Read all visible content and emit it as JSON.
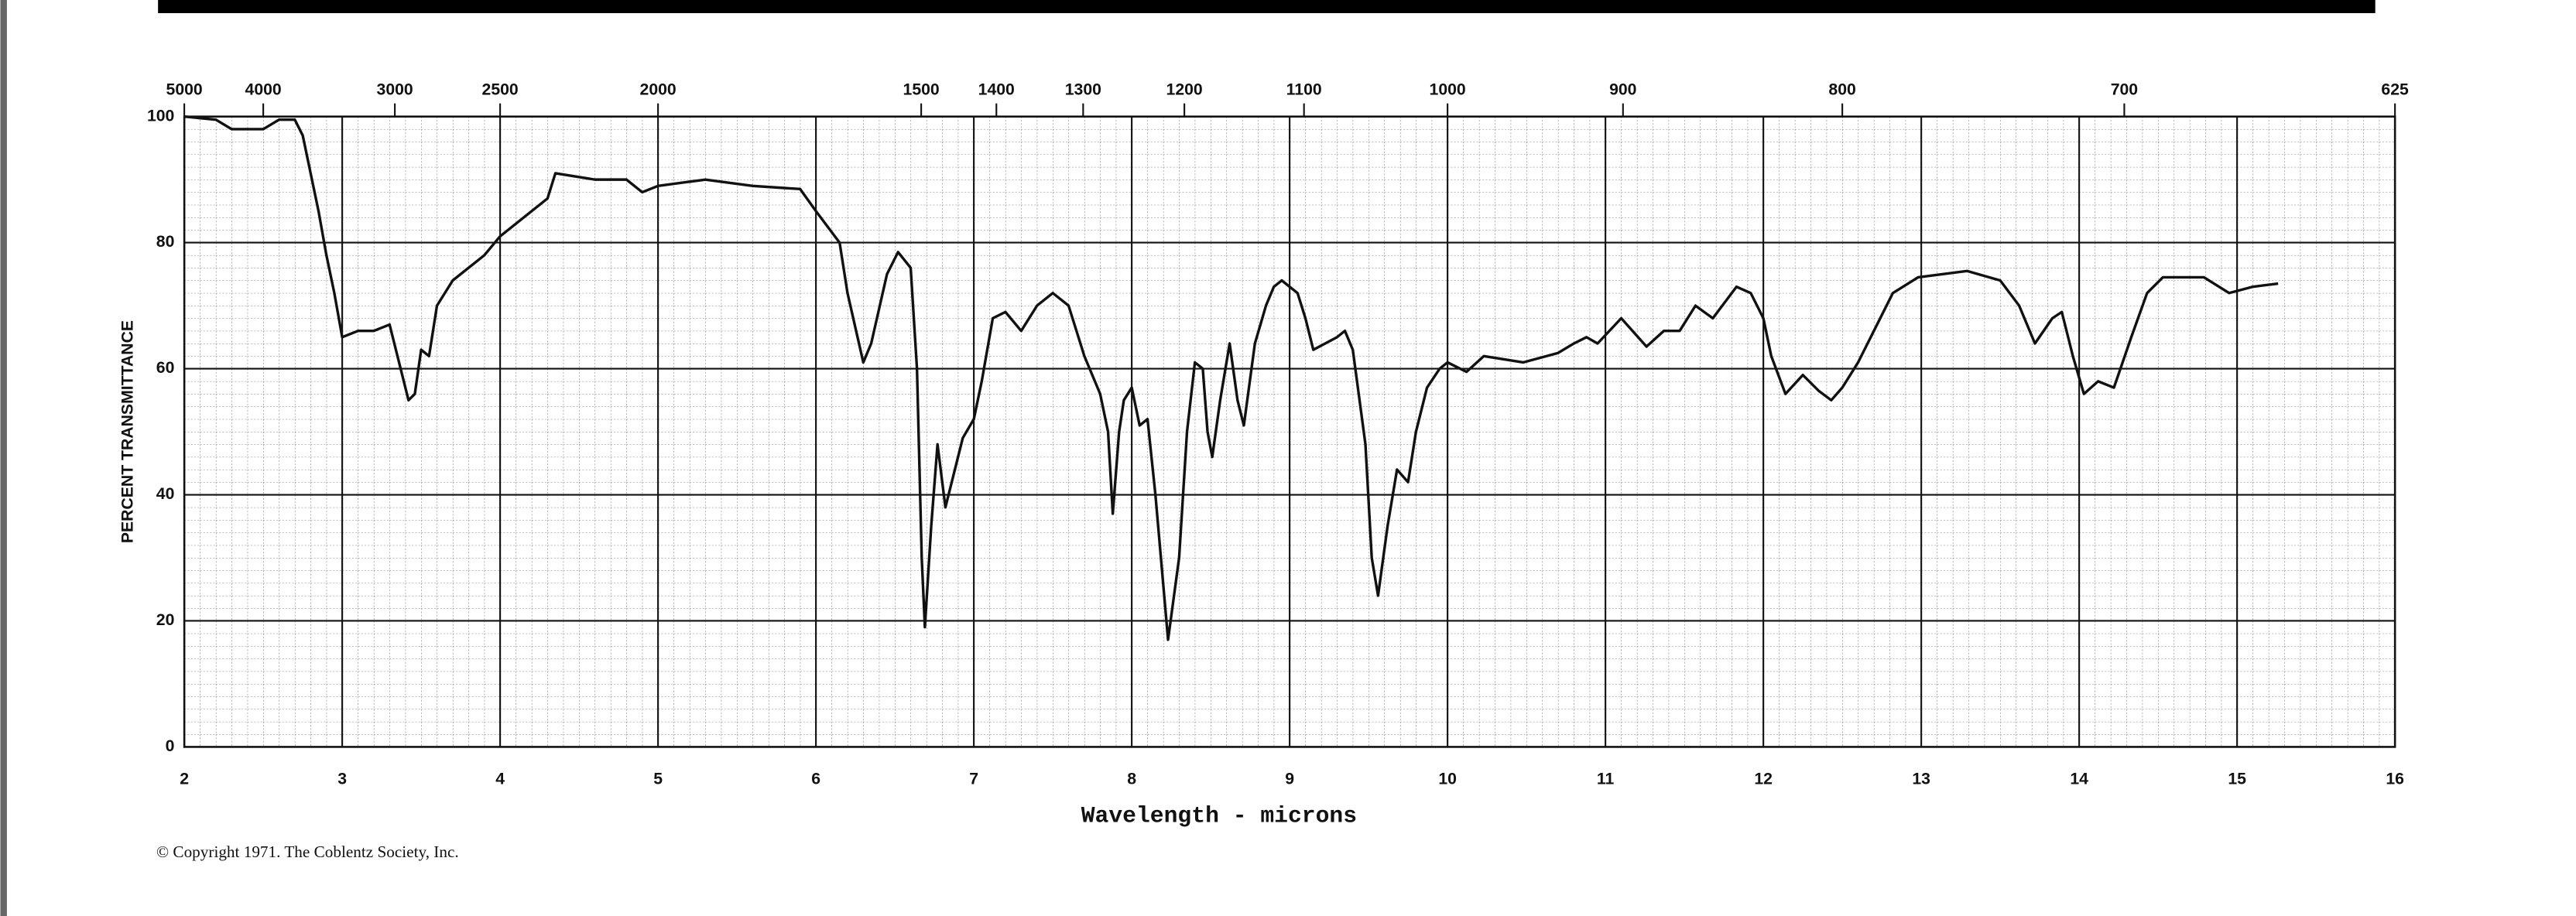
{
  "chart_data": {
    "type": "line",
    "x_label": "Wavelength - microns",
    "y_label": "PERCENT TRANSMITTANCE",
    "footer": "© Copyright 1971. The Coblentz Society, Inc.",
    "xlim": [
      2,
      16
    ],
    "ylim": [
      0,
      100
    ],
    "xticks": [
      2,
      3,
      4,
      5,
      6,
      7,
      8,
      9,
      10,
      11,
      12,
      13,
      14,
      15,
      16
    ],
    "yticks": [
      0,
      20,
      40,
      60,
      80,
      100
    ],
    "top_ticks": [
      5000,
      4000,
      3000,
      2500,
      2000,
      1500,
      1400,
      1300,
      1200,
      1100,
      1000,
      900,
      800,
      700,
      625
    ],
    "grid": true,
    "series": [
      {
        "color": "#111111",
        "x": [
          2.0,
          2.2,
          2.3,
          2.5,
          2.6,
          2.7,
          2.75,
          2.85,
          2.9,
          2.95,
          3.0,
          3.1,
          3.2,
          3.3,
          3.35,
          3.42,
          3.46,
          3.5,
          3.55,
          3.6,
          3.7,
          3.9,
          4.0,
          4.3,
          4.35,
          4.6,
          4.8,
          4.9,
          5.0,
          5.3,
          5.6,
          5.9,
          6.0,
          6.15,
          6.2,
          6.3,
          6.35,
          6.45,
          6.52,
          6.6,
          6.64,
          6.67,
          6.69,
          6.73,
          6.77,
          6.82,
          6.87,
          6.93,
          7.0,
          7.05,
          7.12,
          7.2,
          7.3,
          7.4,
          7.5,
          7.6,
          7.7,
          7.8,
          7.85,
          7.88,
          7.92,
          7.95,
          8.0,
          8.05,
          8.1,
          8.15,
          8.23,
          8.3,
          8.35,
          8.4,
          8.45,
          8.48,
          8.51,
          8.56,
          8.62,
          8.67,
          8.71,
          8.78,
          8.85,
          8.9,
          8.95,
          9.05,
          9.1,
          9.15,
          9.3,
          9.35,
          9.4,
          9.48,
          9.52,
          9.56,
          9.62,
          9.68,
          9.75,
          9.8,
          9.87,
          9.95,
          10.0,
          10.12,
          10.23,
          10.48,
          10.7,
          10.8,
          10.88,
          10.95,
          11.1,
          11.26,
          11.37,
          11.47,
          11.57,
          11.68,
          11.83,
          11.92,
          12.0,
          12.05,
          12.14,
          12.25,
          12.35,
          12.43,
          12.5,
          12.6,
          12.7,
          12.82,
          12.98,
          13.29,
          13.5,
          13.62,
          13.72,
          13.83,
          13.89,
          13.96,
          14.03,
          14.12,
          14.22,
          14.33,
          14.43,
          14.53,
          14.79,
          14.95,
          15.1,
          15.26
        ],
        "values": [
          100,
          99.5,
          98,
          98,
          99.5,
          99.5,
          97,
          85,
          78,
          72,
          65,
          66,
          66,
          67,
          62,
          55,
          56,
          63,
          62,
          70,
          74,
          78,
          81,
          87,
          91,
          90,
          90,
          88,
          89,
          90,
          89,
          88.5,
          85,
          80,
          72,
          61,
          64,
          75,
          78.5,
          76,
          60,
          30,
          19,
          35,
          48,
          38,
          43,
          49,
          52,
          58,
          68,
          69,
          66,
          70,
          72,
          70,
          62,
          56,
          50,
          37,
          50,
          55,
          57,
          51,
          52,
          40,
          17,
          30,
          50,
          61,
          60,
          50,
          46,
          55,
          64,
          55,
          51,
          64,
          70,
          73,
          74,
          72,
          68,
          63,
          65,
          66,
          63,
          48,
          30,
          24,
          35,
          44,
          42,
          50,
          57,
          60,
          61,
          59.5,
          62,
          61,
          62.5,
          64,
          65,
          64,
          68,
          63.5,
          66,
          66,
          70,
          68,
          73,
          72,
          68,
          62,
          56,
          59,
          56.5,
          55,
          57,
          61,
          66,
          72,
          74.5,
          75.5,
          74,
          70,
          64,
          68,
          69,
          62,
          56,
          58,
          57,
          65,
          72,
          74.5,
          74.5,
          72,
          73,
          73.5
        ]
      }
    ]
  }
}
